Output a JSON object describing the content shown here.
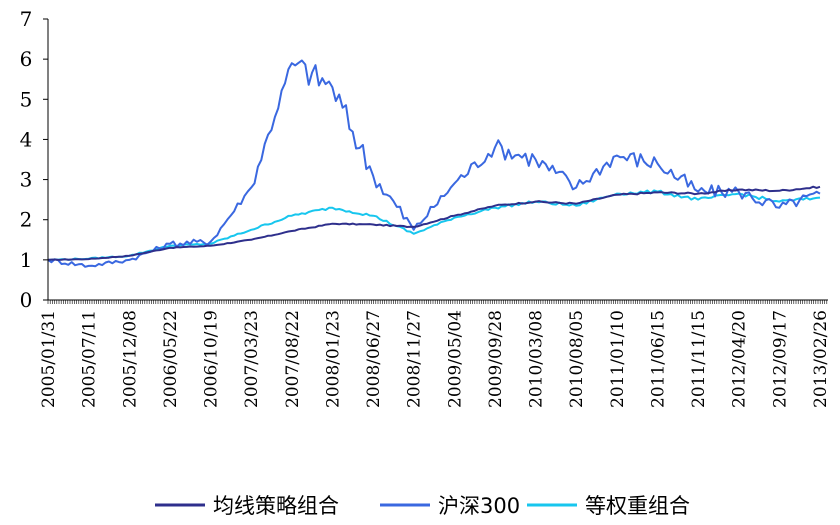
{
  "chart_data": {
    "type": "line",
    "ylim": [
      0,
      7
    ],
    "yticks": [
      0,
      1,
      2,
      3,
      4,
      5,
      6,
      7
    ],
    "grid": false,
    "legend": "bottom",
    "x": [
      "2005/01/31",
      "2005/07/11",
      "2005/12/08",
      "2006/05/22",
      "2006/10/19",
      "2007/03/23",
      "2007/08/22",
      "2008/01/23",
      "2008/06/27",
      "2008/11/27",
      "2009/05/04",
      "2009/09/28",
      "2010/03/08",
      "2010/08/05",
      "2011/01/10",
      "2011/06/15",
      "2011/11/15",
      "2012/04/20",
      "2012/09/17",
      "2013/02/26"
    ],
    "series": [
      {
        "name": "均线策略组合",
        "color": "#2e2f8c",
        "values": [
          1.0,
          1.02,
          1.1,
          1.3,
          1.35,
          1.5,
          1.72,
          1.9,
          1.88,
          1.82,
          2.1,
          2.35,
          2.45,
          2.4,
          2.62,
          2.68,
          2.65,
          2.75,
          2.72,
          2.82
        ]
      },
      {
        "name": "沪深300",
        "color": "#3a68e0",
        "values": [
          1.0,
          0.85,
          1.0,
          1.4,
          1.45,
          2.8,
          5.9,
          5.3,
          3.1,
          1.75,
          2.9,
          3.8,
          3.5,
          2.8,
          3.6,
          3.4,
          2.7,
          2.7,
          2.3,
          2.65
        ]
      },
      {
        "name": "等权重组合",
        "color": "#17c6ee",
        "values": [
          1.0,
          1.03,
          1.1,
          1.35,
          1.4,
          1.75,
          2.1,
          2.3,
          2.1,
          1.65,
          2.05,
          2.3,
          2.45,
          2.35,
          2.65,
          2.7,
          2.5,
          2.65,
          2.45,
          2.55
        ]
      }
    ]
  }
}
